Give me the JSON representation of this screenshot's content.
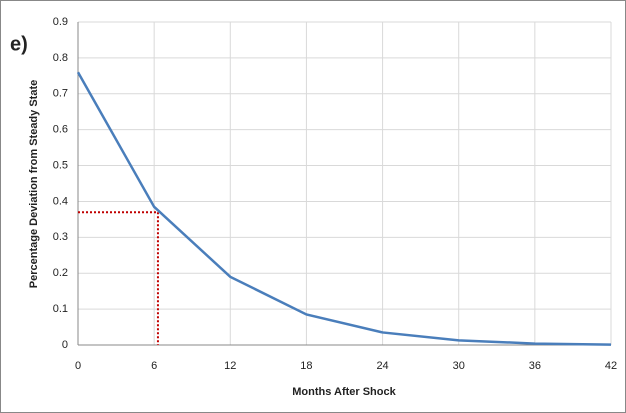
{
  "chart_data": {
    "type": "line",
    "annotation": "e)",
    "x_label": "Months After Shock",
    "y_label": "Percentage Deviation from Steady State",
    "x": [
      0,
      6,
      12,
      18,
      24,
      30,
      36,
      42
    ],
    "series": [
      {
        "color": "#4a7ebb",
        "values": [
          0.76,
          0.385,
          0.19,
          0.085,
          0.035,
          0.013,
          0.004,
          0.001
        ]
      }
    ],
    "reference": {
      "x": 6.3,
      "y": 0.37,
      "color": "#c00000"
    },
    "xlim": [
      0,
      42
    ],
    "xticks": [
      0,
      6,
      12,
      18,
      24,
      30,
      36,
      42
    ],
    "ylim": [
      0,
      0.9
    ],
    "yticks": [
      0,
      0.1,
      0.2,
      0.3,
      0.4,
      0.5,
      0.6,
      0.7,
      0.8,
      0.9
    ],
    "grid": true
  }
}
